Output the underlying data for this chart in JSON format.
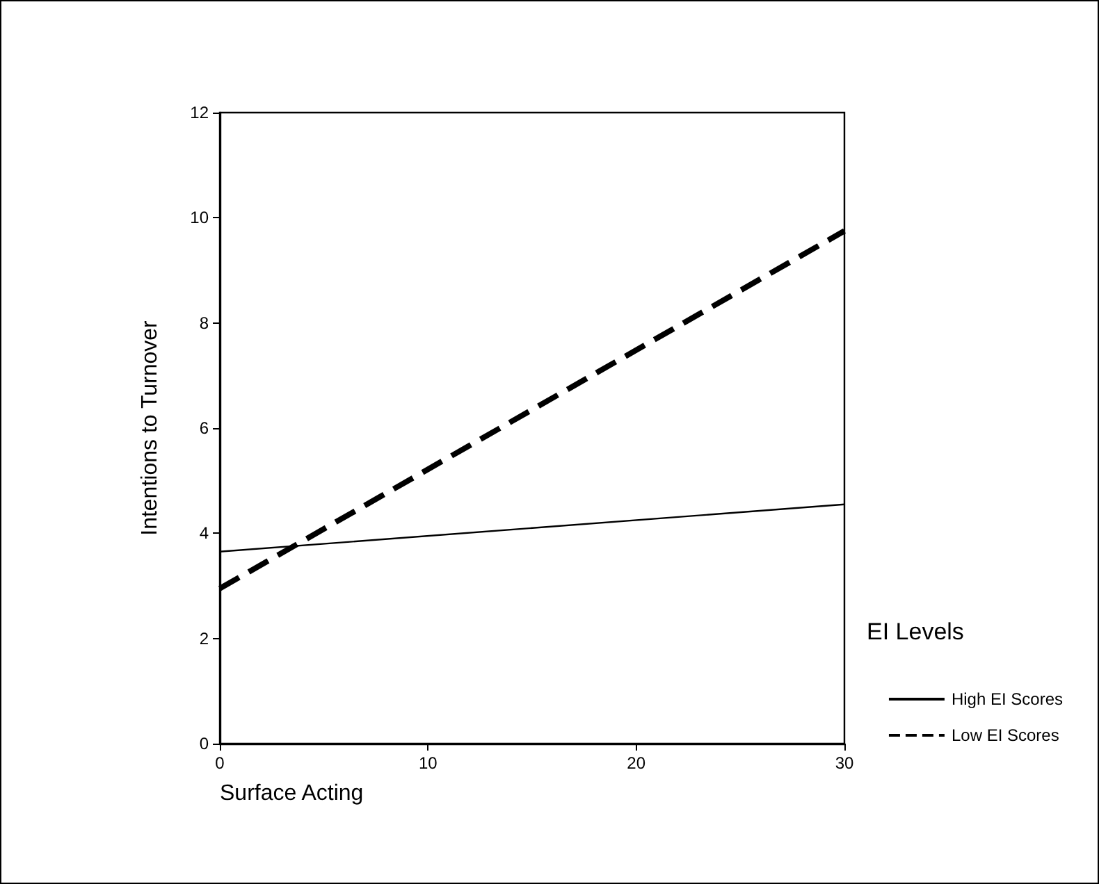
{
  "chart_data": {
    "type": "line",
    "xlabel": "Surface Acting",
    "ylabel": "Intentions to Turnover",
    "legend_title": "EI Levels",
    "x": [
      0,
      30
    ],
    "series": [
      {
        "name": "High EI Scores",
        "color": "#000000",
        "values": [
          3.65,
          4.55
        ],
        "line_style": "solid"
      },
      {
        "name": "Low EI Scores",
        "color": "#000000",
        "values": [
          2.95,
          9.75
        ],
        "line_style": "dashed"
      }
    ],
    "xlim": [
      0,
      30
    ],
    "xticks": [
      0,
      10,
      20,
      30
    ],
    "ylim": [
      0,
      12
    ],
    "yticks": [
      0,
      2,
      4,
      6,
      8,
      10,
      12
    ],
    "grid": false,
    "legend": "bottom right",
    "marker": "none"
  }
}
